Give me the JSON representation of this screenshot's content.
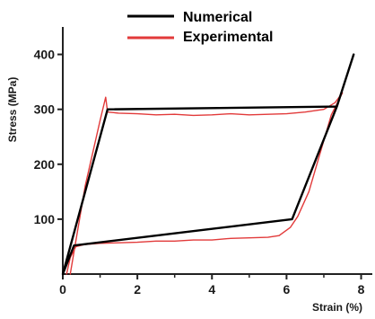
{
  "chart_data": {
    "type": "line",
    "xlabel": "Strain (%)",
    "ylabel": "Stress (MPa)",
    "xlim": [
      0,
      8.3
    ],
    "ylim": [
      0,
      450
    ],
    "x_ticks": [
      0,
      2,
      4,
      6,
      8
    ],
    "y_ticks": [
      100,
      200,
      300,
      400
    ],
    "grid": false,
    "legend_position": "top-center",
    "series": [
      {
        "name": "Numerical",
        "color": "#000000",
        "points": [
          [
            0,
            0
          ],
          [
            1.2,
            300
          ],
          [
            7.35,
            305
          ],
          [
            6.15,
            100
          ],
          [
            0.3,
            52
          ],
          [
            0,
            0
          ],
          [
            0,
            0
          ],
          [
            1.2,
            300
          ],
          [
            7.35,
            305
          ],
          [
            7.8,
            400
          ]
        ]
      },
      {
        "name": "Experimental",
        "color": "#e23a3a",
        "points": [
          [
            0.2,
            0
          ],
          [
            0.6,
            160
          ],
          [
            1.0,
            280
          ],
          [
            1.15,
            322
          ],
          [
            1.2,
            295
          ],
          [
            1.5,
            293
          ],
          [
            2.0,
            292
          ],
          [
            2.5,
            290
          ],
          [
            3.0,
            291
          ],
          [
            3.5,
            289
          ],
          [
            4.0,
            290
          ],
          [
            4.5,
            292
          ],
          [
            5.0,
            290
          ],
          [
            5.5,
            291
          ],
          [
            6.0,
            292
          ],
          [
            6.5,
            295
          ],
          [
            7.0,
            300
          ],
          [
            7.3,
            312
          ],
          [
            7.5,
            330
          ],
          [
            7.2,
            290
          ],
          [
            6.9,
            220
          ],
          [
            6.6,
            150
          ],
          [
            6.3,
            105
          ],
          [
            6.1,
            85
          ],
          [
            5.8,
            70
          ],
          [
            5.5,
            67
          ],
          [
            5.0,
            66
          ],
          [
            4.5,
            65
          ],
          [
            4.0,
            62
          ],
          [
            3.5,
            62
          ],
          [
            3.0,
            60
          ],
          [
            2.5,
            60
          ],
          [
            2.0,
            58
          ],
          [
            1.5,
            57
          ],
          [
            1.0,
            56
          ],
          [
            0.6,
            54
          ],
          [
            0.35,
            50
          ],
          [
            0.2,
            30
          ],
          [
            0.1,
            0
          ]
        ]
      }
    ]
  }
}
